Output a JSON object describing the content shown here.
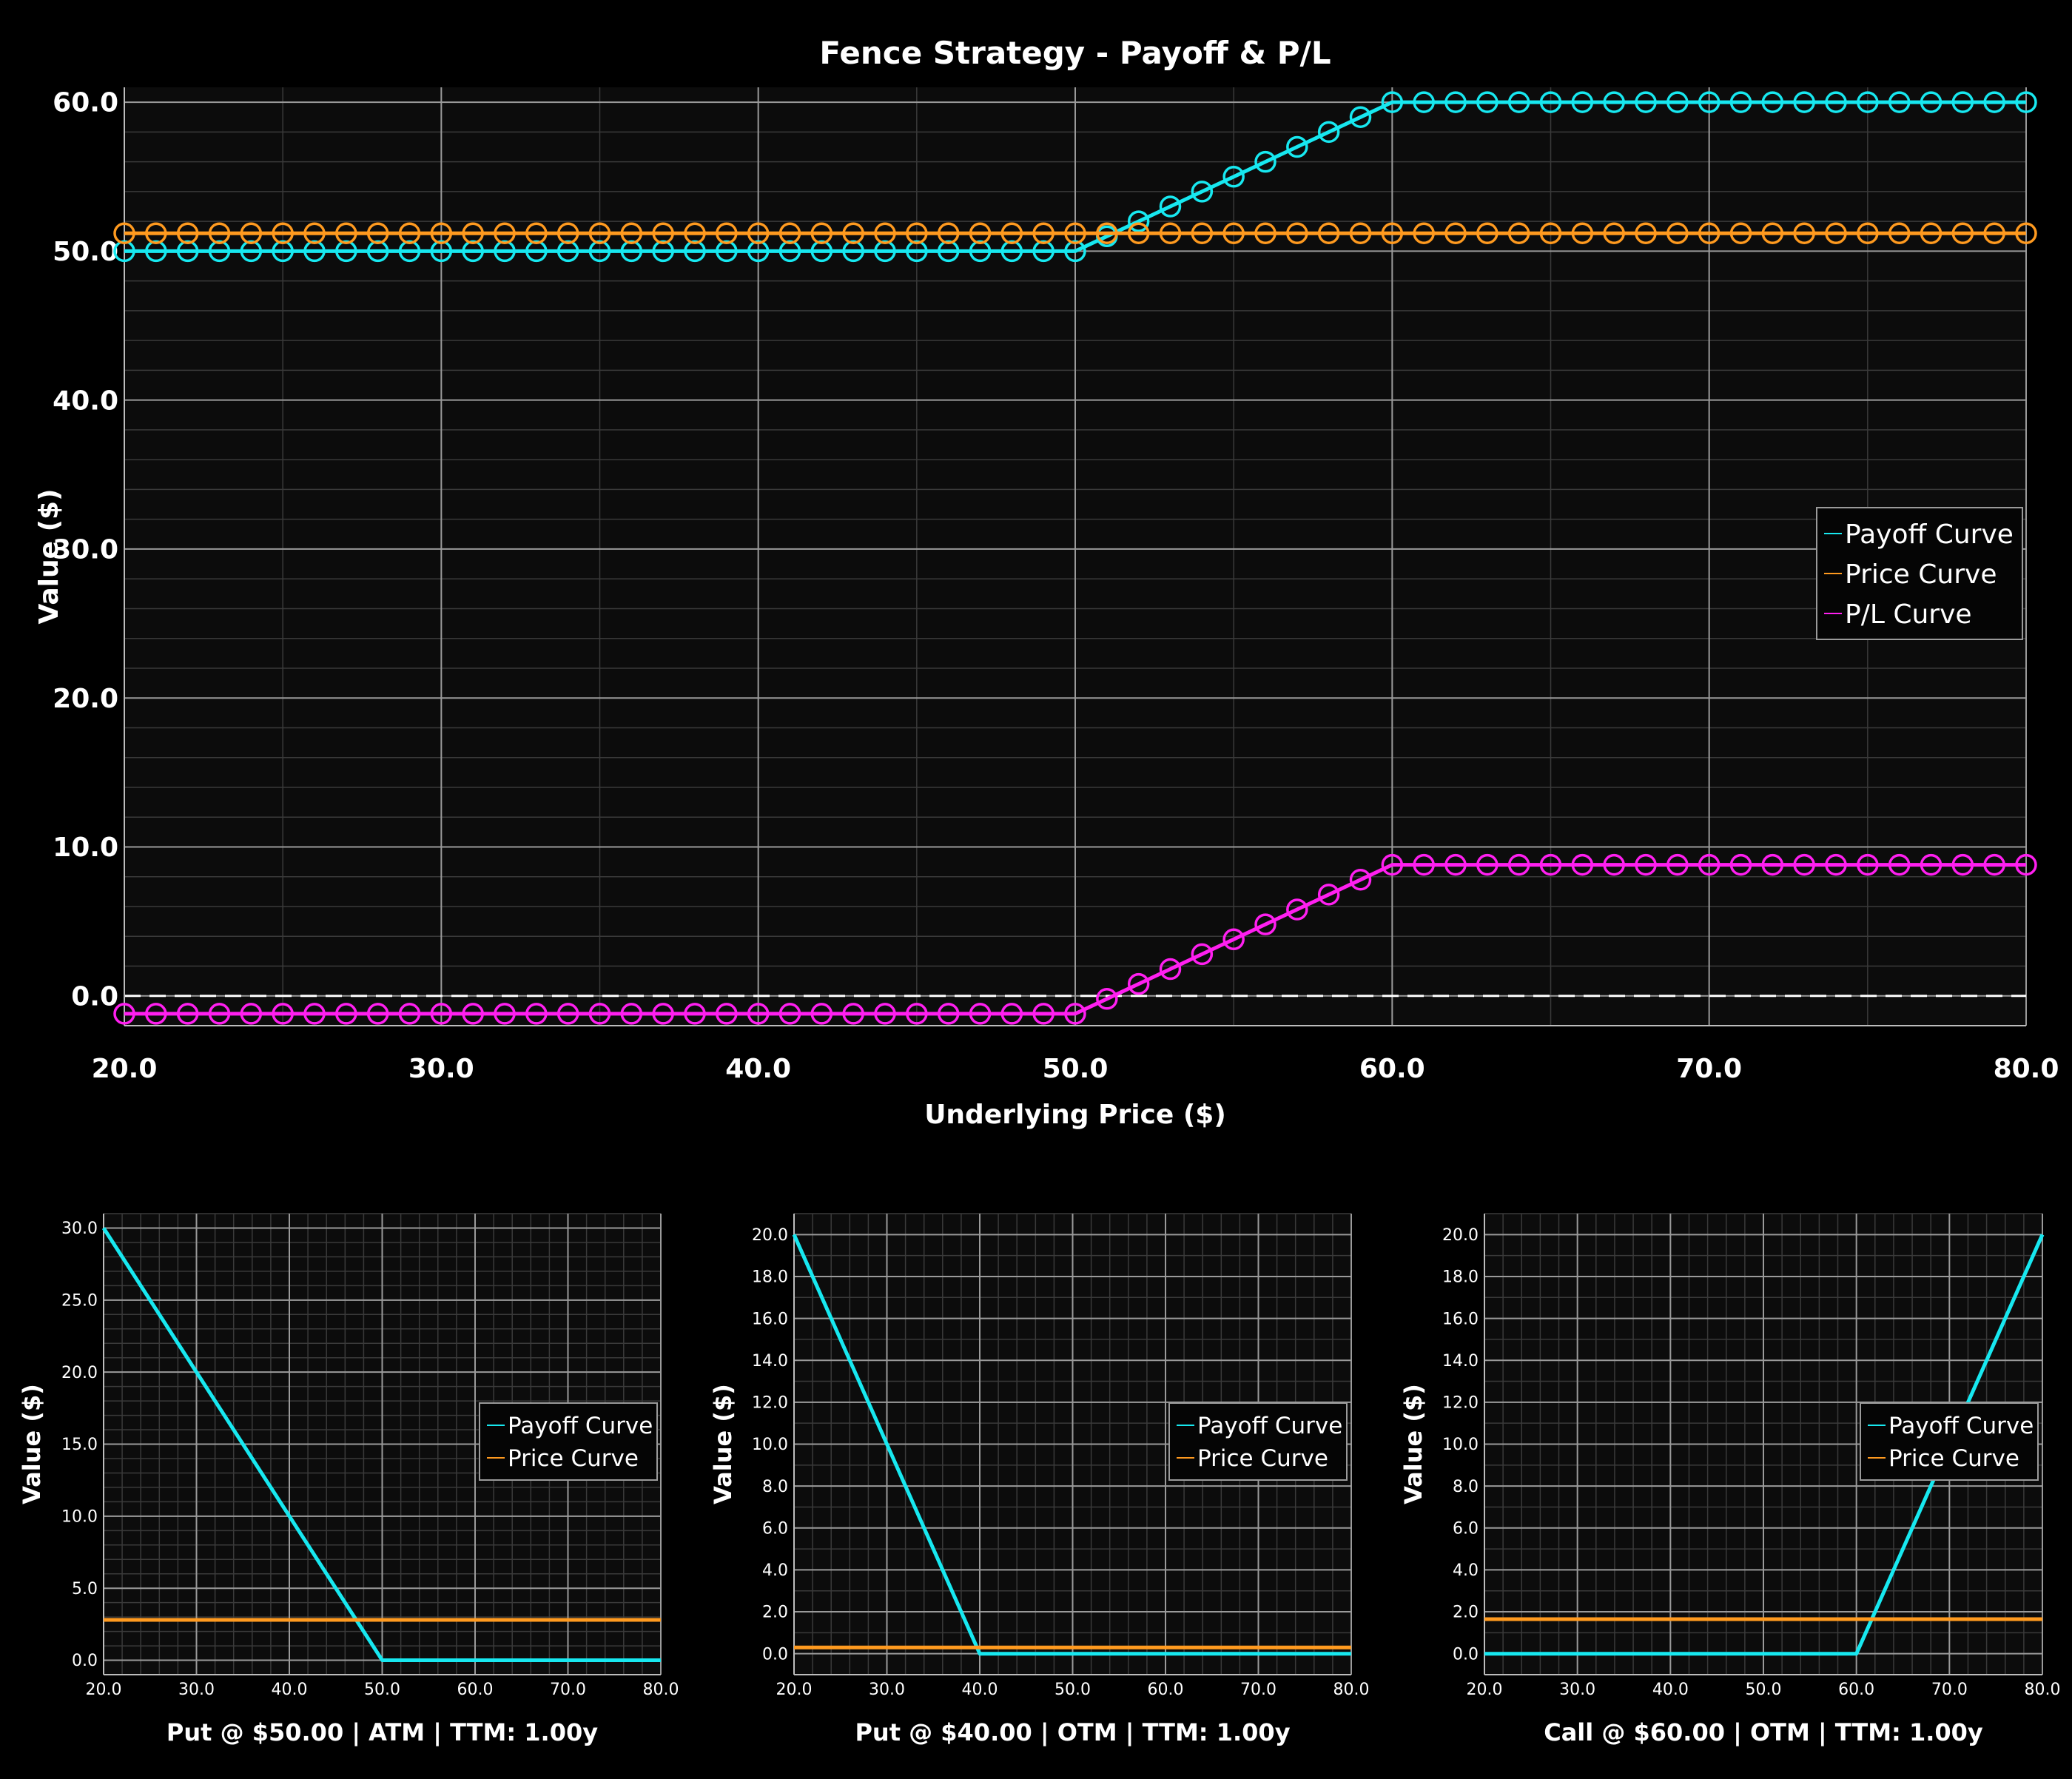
{
  "chart_data": [
    {
      "id": "main",
      "type": "line",
      "title": "Fence Strategy - Payoff & P/L",
      "xlabel": "Underlying Price ($)",
      "ylabel": "Value ($)",
      "xlim": [
        20,
        80
      ],
      "ylim": [
        -2,
        61
      ],
      "xticks": [
        20,
        30,
        40,
        50,
        60,
        70,
        80
      ],
      "yticks": [
        0,
        10,
        20,
        30,
        40,
        50,
        60
      ],
      "tick_format": "0.0",
      "zero_line": "dashed",
      "grid": true,
      "legend_position": "center-right",
      "x": [
        20,
        21,
        22,
        23,
        24,
        25,
        26,
        27,
        28,
        29,
        30,
        31,
        32,
        33,
        34,
        35,
        36,
        37,
        38,
        39,
        40,
        41,
        42,
        43,
        44,
        45,
        46,
        47,
        48,
        49,
        50,
        51,
        52,
        53,
        54,
        55,
        56,
        57,
        58,
        59,
        60,
        61,
        62,
        63,
        64,
        65,
        66,
        67,
        68,
        69,
        70,
        71,
        72,
        73,
        74,
        75,
        76,
        77,
        78,
        79,
        80
      ],
      "series": [
        {
          "name": "Payoff Curve",
          "color": "#17e8f0",
          "marker": "circle",
          "values": [
            50,
            50,
            50,
            50,
            50,
            50,
            50,
            50,
            50,
            50,
            50,
            50,
            50,
            50,
            50,
            50,
            50,
            50,
            50,
            50,
            50,
            50,
            50,
            50,
            50,
            50,
            50,
            50,
            50,
            50,
            50,
            51,
            52,
            53,
            54,
            55,
            56,
            57,
            58,
            59,
            60,
            60,
            60,
            60,
            60,
            60,
            60,
            60,
            60,
            60,
            60,
            60,
            60,
            60,
            60,
            60,
            60,
            60,
            60,
            60,
            60
          ]
        },
        {
          "name": "Price Curve",
          "color": "#ff9a1f",
          "marker": "circle",
          "values": [
            51.2,
            51.2,
            51.2,
            51.2,
            51.2,
            51.2,
            51.2,
            51.2,
            51.2,
            51.2,
            51.2,
            51.2,
            51.2,
            51.2,
            51.2,
            51.2,
            51.2,
            51.2,
            51.2,
            51.2,
            51.2,
            51.2,
            51.2,
            51.2,
            51.2,
            51.2,
            51.2,
            51.2,
            51.2,
            51.2,
            51.2,
            51.2,
            51.2,
            51.2,
            51.2,
            51.2,
            51.2,
            51.2,
            51.2,
            51.2,
            51.2,
            51.2,
            51.2,
            51.2,
            51.2,
            51.2,
            51.2,
            51.2,
            51.2,
            51.2,
            51.2,
            51.2,
            51.2,
            51.2,
            51.2,
            51.2,
            51.2,
            51.2,
            51.2,
            51.2,
            51.2
          ]
        },
        {
          "name": "P/L Curve",
          "color": "#ff1ff0",
          "marker": "circle",
          "values": [
            -1.2,
            -1.2,
            -1.2,
            -1.2,
            -1.2,
            -1.2,
            -1.2,
            -1.2,
            -1.2,
            -1.2,
            -1.2,
            -1.2,
            -1.2,
            -1.2,
            -1.2,
            -1.2,
            -1.2,
            -1.2,
            -1.2,
            -1.2,
            -1.2,
            -1.2,
            -1.2,
            -1.2,
            -1.2,
            -1.2,
            -1.2,
            -1.2,
            -1.2,
            -1.2,
            -1.2,
            -0.2,
            0.8,
            1.8,
            2.8,
            3.8,
            4.8,
            5.8,
            6.8,
            7.8,
            8.8,
            8.8,
            8.8,
            8.8,
            8.8,
            8.8,
            8.8,
            8.8,
            8.8,
            8.8,
            8.8,
            8.8,
            8.8,
            8.8,
            8.8,
            8.8,
            8.8,
            8.8,
            8.8,
            8.8,
            8.8
          ]
        }
      ]
    },
    {
      "id": "put50",
      "type": "line",
      "xlabel": "Put @ $50.00 | ATM | TTM: 1.00y",
      "ylabel": "Value ($)",
      "xlim": [
        20,
        80
      ],
      "ylim": [
        -1,
        31
      ],
      "xticks": [
        20,
        30,
        40,
        50,
        60,
        70,
        80
      ],
      "yticks": [
        0,
        5,
        10,
        15,
        20,
        25,
        30
      ],
      "tick_format": "0.0",
      "grid": true,
      "legend_position": "center-right",
      "series": [
        {
          "name": "Payoff Curve",
          "color": "#17e8f0",
          "x": [
            20,
            50,
            80
          ],
          "values": [
            30,
            0,
            0
          ]
        },
        {
          "name": "Price Curve",
          "color": "#ff9a1f",
          "x": [
            20,
            80
          ],
          "values": [
            2.8,
            2.8
          ]
        }
      ]
    },
    {
      "id": "put40",
      "type": "line",
      "xlabel": "Put @ $40.00 | OTM | TTM: 1.00y",
      "ylabel": "Value ($)",
      "xlim": [
        20,
        80
      ],
      "ylim": [
        -1,
        21
      ],
      "xticks": [
        20,
        30,
        40,
        50,
        60,
        70,
        80
      ],
      "yticks": [
        0,
        2,
        4,
        6,
        8,
        10,
        12,
        14,
        16,
        18,
        20
      ],
      "tick_format": "0.0",
      "grid": true,
      "legend_position": "center-right",
      "series": [
        {
          "name": "Payoff Curve",
          "color": "#17e8f0",
          "x": [
            20,
            40,
            80
          ],
          "values": [
            20,
            0,
            0
          ]
        },
        {
          "name": "Price Curve",
          "color": "#ff9a1f",
          "x": [
            20,
            80
          ],
          "values": [
            0.3,
            0.3
          ]
        }
      ]
    },
    {
      "id": "call60",
      "type": "line",
      "xlabel": "Call @ $60.00 | OTM | TTM: 1.00y",
      "ylabel": "Value ($)",
      "xlim": [
        20,
        80
      ],
      "ylim": [
        -1,
        21
      ],
      "xticks": [
        20,
        30,
        40,
        50,
        60,
        70,
        80
      ],
      "yticks": [
        0,
        2,
        4,
        6,
        8,
        10,
        12,
        14,
        16,
        18,
        20
      ],
      "tick_format": "0.0",
      "grid": true,
      "legend_position": "center-right",
      "series": [
        {
          "name": "Payoff Curve",
          "color": "#17e8f0",
          "x": [
            20,
            60,
            80
          ],
          "values": [
            0,
            0,
            20
          ]
        },
        {
          "name": "Price Curve",
          "color": "#ff9a1f",
          "x": [
            20,
            80
          ],
          "values": [
            1.65,
            1.65
          ]
        }
      ]
    }
  ]
}
